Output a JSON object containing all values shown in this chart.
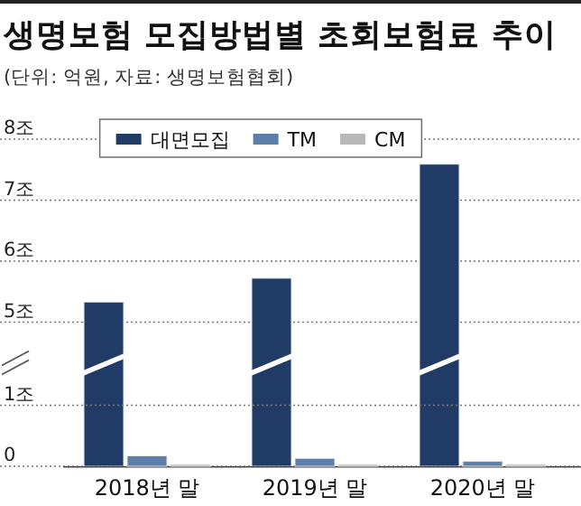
{
  "chart_data": [
    {
      "type": "bar",
      "title": "생명보험 모집방법별 초회보험료 추이",
      "subtitle": "(단위: 억원, 자료: 생명보험협회)",
      "categories": [
        null,
        null,
        null
      ],
      "series": [
        {
          "name": "대면모집",
          "color": "#213b67",
          "values": [
            5.33,
            5.72,
            7.59
          ]
        },
        {
          "name": "TM",
          "color": "#5b7fa8",
          "values": [
            null,
            null,
            null
          ]
        },
        {
          "name": "CM",
          "color": "#b8b8b8",
          "values": [
            null,
            null,
            null
          ]
        }
      ],
      "ylim": [
        5,
        8
      ],
      "yticks": [
        {
          "value": 5,
          "label": "5조"
        },
        {
          "value": 6,
          "label": "6조"
        },
        {
          "value": 7,
          "label": "7조"
        },
        {
          "value": 8,
          "label": "8조"
        }
      ],
      "grid": "y",
      "legend": "top"
    },
    {
      "type": "bar",
      "categories": [
        "2018년 말",
        "2019년 말",
        "2020년 말"
      ],
      "series": [
        {
          "values": [
            null,
            null,
            null
          ]
        },
        {
          "color": "#5b7fa8",
          "values": [
            0.17,
            0.13,
            0.08
          ]
        },
        {
          "color": "#b8b8b8",
          "values": [
            0.03,
            0.03,
            0.03
          ]
        }
      ],
      "ylim": [
        0,
        1
      ],
      "yticks": [
        0,
        {
          "value": 1,
          "label": "1조"
        }
      ],
      "grid": "y"
    }
  ]
}
